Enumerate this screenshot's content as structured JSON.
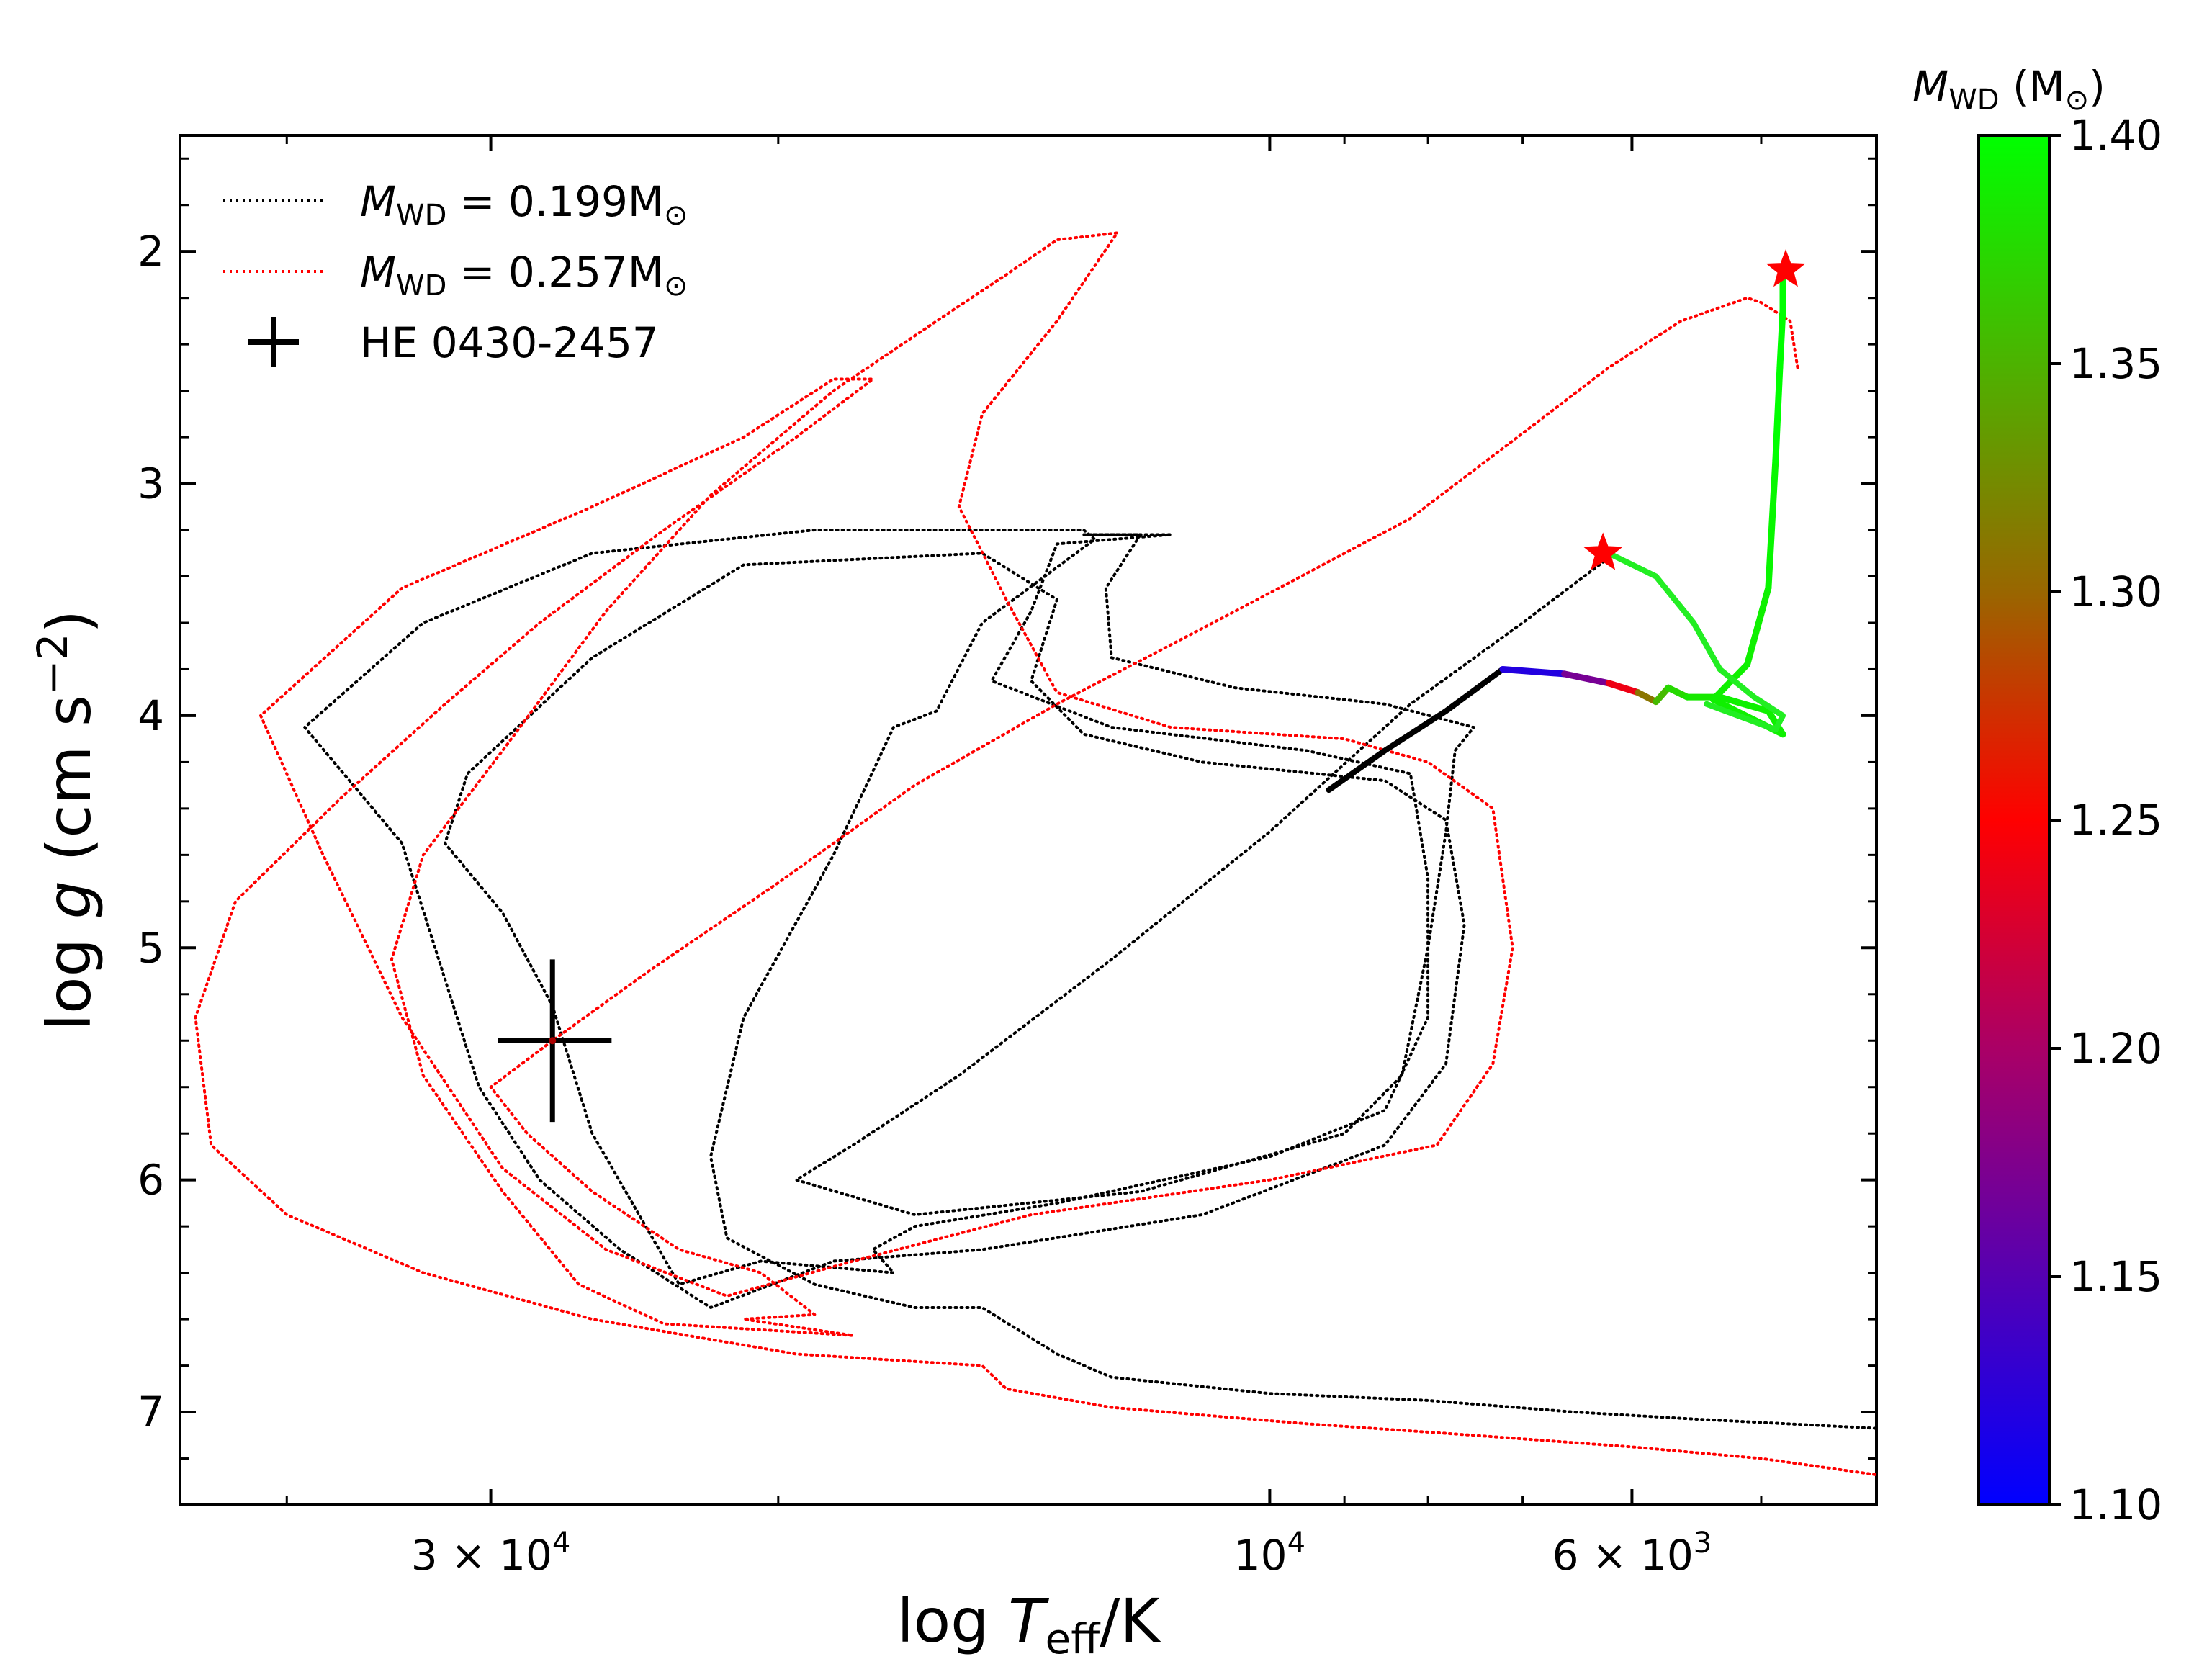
{
  "chart_data": {
    "type": "line",
    "title": "",
    "xlabel": "log T_eff/K",
    "xlabel_parts": {
      "pre": "log ",
      "main": "T",
      "sub": "eff",
      "post": "/K"
    },
    "ylabel": "log g (cm s^-2)",
    "ylabel_parts": {
      "pre": "log ",
      "main": "g",
      "post": " (cm s",
      "sup": "−2",
      "close": ")"
    },
    "x_scale": "log",
    "x_inverted": true,
    "xlim": [
      46500,
      4250
    ],
    "ylim": [
      7.4,
      1.5
    ],
    "y_inverted": true,
    "x_ticks": [
      {
        "value": 30000,
        "label_mant": "3 × 10",
        "label_exp": "4"
      },
      {
        "value": 10000,
        "label_mant": "10",
        "label_exp": "4"
      },
      {
        "value": 6000,
        "label_mant": "6 × 10",
        "label_exp": "3"
      }
    ],
    "x_minor_ticks": [
      40000,
      20000,
      9000,
      8000,
      7000,
      5000
    ],
    "y_ticks": [
      {
        "value": 2,
        "label": "2"
      },
      {
        "value": 3,
        "label": "3"
      },
      {
        "value": 4,
        "label": "4"
      },
      {
        "value": 5,
        "label": "5"
      },
      {
        "value": 6,
        "label": "6"
      },
      {
        "value": 7,
        "label": "7"
      }
    ],
    "legend": {
      "placement": "top-left",
      "entries": [
        {
          "label_main": "M",
          "label_sub": "WD",
          "label_rest": " = 0.199M",
          "label_sym": "⊙",
          "color": "#000000",
          "style": "dotted"
        },
        {
          "label_main": "M",
          "label_sub": "WD",
          "label_rest": " = 0.257M",
          "label_sym": "⊙",
          "color": "#ff0000",
          "style": "dotted"
        },
        {
          "label": "HE 0430-2457",
          "color": "#000000",
          "style": "cross"
        }
      ]
    },
    "series": [
      {
        "name": "M_WD = 0.199 Msun",
        "color": "#000000",
        "style": "dotted",
        "points": [
          [
            6200,
            3.32
          ],
          [
            7000,
            3.6
          ],
          [
            8200,
            3.95
          ],
          [
            10000,
            4.5
          ],
          [
            12500,
            5.05
          ],
          [
            15500,
            5.55
          ],
          [
            18000,
            5.85
          ],
          [
            19500,
            6.0
          ],
          [
            16500,
            6.15
          ],
          [
            12000,
            6.05
          ],
          [
            9000,
            5.8
          ],
          [
            8300,
            5.55
          ],
          [
            8000,
            5.0
          ],
          [
            7800,
            4.5
          ],
          [
            7700,
            4.15
          ],
          [
            7500,
            4.05
          ],
          [
            8500,
            3.95
          ],
          [
            10500,
            3.88
          ],
          [
            12500,
            3.75
          ],
          [
            12600,
            3.45
          ],
          [
            12000,
            3.22
          ],
          [
            13000,
            3.22
          ],
          [
            11500,
            3.22
          ],
          [
            13500,
            3.26
          ],
          [
            14000,
            3.55
          ],
          [
            14800,
            3.85
          ],
          [
            12500,
            4.05
          ],
          [
            9500,
            4.15
          ],
          [
            8200,
            4.25
          ],
          [
            8000,
            4.7
          ],
          [
            8000,
            5.3
          ],
          [
            8500,
            5.7
          ],
          [
            10000,
            5.9
          ],
          [
            13500,
            6.1
          ],
          [
            16500,
            6.2
          ],
          [
            17500,
            6.3
          ],
          [
            17000,
            6.4
          ],
          [
            20500,
            6.35
          ],
          [
            23000,
            6.45
          ],
          [
            26000,
            5.8
          ],
          [
            27500,
            5.25
          ],
          [
            29500,
            4.85
          ],
          [
            32000,
            4.55
          ],
          [
            31000,
            4.25
          ],
          [
            26000,
            3.75
          ],
          [
            21000,
            3.35
          ],
          [
            15000,
            3.3
          ],
          [
            13500,
            3.5
          ],
          [
            14000,
            3.85
          ],
          [
            13000,
            4.08
          ],
          [
            11000,
            4.2
          ],
          [
            8500,
            4.28
          ],
          [
            7800,
            4.45
          ],
          [
            7600,
            4.9
          ],
          [
            7800,
            5.5
          ],
          [
            8500,
            5.85
          ],
          [
            11000,
            6.15
          ],
          [
            15000,
            6.3
          ],
          [
            18500,
            6.35
          ],
          [
            22000,
            6.55
          ],
          [
            25000,
            6.3
          ],
          [
            28000,
            6.0
          ],
          [
            30500,
            5.6
          ],
          [
            34000,
            4.55
          ],
          [
            39000,
            4.05
          ],
          [
            33000,
            3.6
          ],
          [
            26000,
            3.3
          ],
          [
            19000,
            3.2
          ],
          [
            13000,
            3.2
          ],
          [
            12800,
            3.24
          ],
          [
            15000,
            3.6
          ],
          [
            16000,
            3.98
          ],
          [
            17000,
            4.05
          ],
          [
            18500,
            4.6
          ],
          [
            21000,
            5.3
          ],
          [
            22000,
            5.9
          ],
          [
            21500,
            6.25
          ],
          [
            19000,
            6.45
          ],
          [
            16500,
            6.55
          ],
          [
            15000,
            6.55
          ],
          [
            13500,
            6.75
          ],
          [
            12500,
            6.85
          ],
          [
            10000,
            6.92
          ],
          [
            8000,
            6.95
          ],
          [
            6500,
            7.0
          ],
          [
            5500,
            7.03
          ],
          [
            4250,
            7.07
          ]
        ]
      },
      {
        "name": "M_WD = 0.257 Msun",
        "color": "#ff0000",
        "style": "dotted",
        "points": [
          [
            4750,
            2.5
          ],
          [
            4800,
            2.3
          ],
          [
            5000,
            2.22
          ],
          [
            5100,
            2.2
          ],
          [
            5600,
            2.3
          ],
          [
            6200,
            2.5
          ],
          [
            6900,
            2.75
          ],
          [
            8200,
            3.15
          ],
          [
            10500,
            3.55
          ],
          [
            13500,
            3.95
          ],
          [
            16500,
            4.3
          ],
          [
            20000,
            4.72
          ],
          [
            24000,
            5.1
          ],
          [
            27500,
            5.4
          ],
          [
            30000,
            5.6
          ],
          [
            28500,
            5.8
          ],
          [
            26000,
            6.05
          ],
          [
            23000,
            6.3
          ],
          [
            20500,
            6.4
          ],
          [
            19000,
            6.58
          ],
          [
            21000,
            6.6
          ],
          [
            18000,
            6.67
          ],
          [
            23500,
            6.62
          ],
          [
            26500,
            6.45
          ],
          [
            29500,
            6.05
          ],
          [
            33000,
            5.55
          ],
          [
            34500,
            5.05
          ],
          [
            33000,
            4.6
          ],
          [
            29500,
            4.15
          ],
          [
            25500,
            3.55
          ],
          [
            22000,
            3.05
          ],
          [
            18500,
            2.6
          ],
          [
            16000,
            2.3
          ],
          [
            14500,
            2.1
          ],
          [
            13500,
            1.95
          ],
          [
            12400,
            1.92
          ],
          [
            13500,
            2.3
          ],
          [
            15000,
            2.7
          ],
          [
            15500,
            3.1
          ],
          [
            14500,
            3.5
          ],
          [
            13500,
            3.9
          ],
          [
            11500,
            4.05
          ],
          [
            9000,
            4.1
          ],
          [
            8000,
            4.2
          ],
          [
            7300,
            4.4
          ],
          [
            7200,
            4.7
          ],
          [
            7100,
            5.0
          ],
          [
            7300,
            5.5
          ],
          [
            7900,
            5.85
          ],
          [
            10000,
            6.0
          ],
          [
            14000,
            6.15
          ],
          [
            18000,
            6.35
          ],
          [
            21500,
            6.5
          ],
          [
            25500,
            6.3
          ],
          [
            29500,
            5.95
          ],
          [
            34000,
            5.3
          ],
          [
            38000,
            4.6
          ],
          [
            41500,
            4.0
          ],
          [
            34000,
            3.45
          ],
          [
            26000,
            3.1
          ],
          [
            21000,
            2.8
          ],
          [
            18500,
            2.55
          ],
          [
            17500,
            2.55
          ],
          [
            19500,
            2.8
          ],
          [
            23500,
            3.2
          ],
          [
            28000,
            3.6
          ],
          [
            32000,
            3.95
          ],
          [
            37000,
            4.35
          ],
          [
            43000,
            4.8
          ],
          [
            45500,
            5.3
          ],
          [
            44500,
            5.85
          ],
          [
            40000,
            6.15
          ],
          [
            33000,
            6.4
          ],
          [
            26000,
            6.6
          ],
          [
            19500,
            6.75
          ],
          [
            15000,
            6.8
          ],
          [
            14500,
            6.9
          ],
          [
            12500,
            6.98
          ],
          [
            9500,
            7.05
          ],
          [
            7500,
            7.1
          ],
          [
            6000,
            7.15
          ],
          [
            5000,
            7.2
          ],
          [
            4250,
            7.27
          ]
        ]
      },
      {
        "name": "thick track",
        "color": "#000000",
        "style": "solid-thick",
        "points": [
          [
            9200,
            4.32
          ],
          [
            8500,
            4.15
          ],
          [
            7800,
            3.98
          ],
          [
            7200,
            3.8
          ]
        ]
      },
      {
        "name": "gradient track",
        "color_by": "M_WD",
        "style": "gradient",
        "points": [
          [
            7200,
            3.8,
            1.1
          ],
          [
            6600,
            3.82,
            1.14
          ],
          [
            6200,
            3.86,
            1.2
          ],
          [
            5950,
            3.9,
            1.28
          ],
          [
            5800,
            3.94,
            1.34
          ],
          [
            5700,
            3.88,
            1.37
          ],
          [
            5550,
            3.92,
            1.38
          ],
          [
            5300,
            3.92,
            1.39
          ],
          [
            4950,
            3.98,
            1.39
          ],
          [
            4850,
            4.08,
            1.39
          ],
          [
            5350,
            3.93,
            1.39
          ],
          [
            5100,
            3.78,
            1.39
          ],
          [
            4950,
            3.45,
            1.39
          ],
          [
            4900,
            2.9,
            1.4
          ],
          [
            4870,
            2.5,
            1.4
          ],
          [
            4850,
            2.25,
            1.4
          ],
          [
            4850,
            2.12,
            1.4
          ]
        ]
      },
      {
        "name": "green track",
        "color": "#22ee22",
        "style": "solid-thick",
        "points": [
          [
            6200,
            3.3
          ],
          [
            5800,
            3.4
          ],
          [
            5500,
            3.6
          ],
          [
            5300,
            3.8
          ],
          [
            5050,
            3.92
          ],
          [
            4850,
            4.0
          ],
          [
            4900,
            4.06
          ],
          [
            5400,
            3.95
          ]
        ]
      }
    ],
    "markers": [
      {
        "name": "star-upper",
        "x": 4830,
        "y": 2.08,
        "shape": "star",
        "color": "#ff0000"
      },
      {
        "name": "star-lower",
        "x": 6250,
        "y": 3.3,
        "shape": "star",
        "color": "#ff0000"
      }
    ],
    "observation": {
      "label": "HE 0430-2457",
      "x": 27500,
      "y": 5.4,
      "x_err": [
        2200,
        2200
      ],
      "y_err": [
        0.35,
        0.35
      ]
    },
    "colorbar": {
      "label_main": "M",
      "label_sub": "WD",
      "label_rest": " (M",
      "label_sym": "⊙",
      "label_close": ")",
      "min": 1.1,
      "max": 1.4,
      "stops": [
        {
          "value": 1.1,
          "color": "#0000ff"
        },
        {
          "value": 1.2,
          "color": "#aa0066"
        },
        {
          "value": 1.25,
          "color": "#ff0000"
        },
        {
          "value": 1.3,
          "color": "#996600"
        },
        {
          "value": 1.4,
          "color": "#00ff00"
        }
      ],
      "ticks": [
        "1.10",
        "1.15",
        "1.20",
        "1.25",
        "1.30",
        "1.35",
        "1.40"
      ]
    }
  }
}
